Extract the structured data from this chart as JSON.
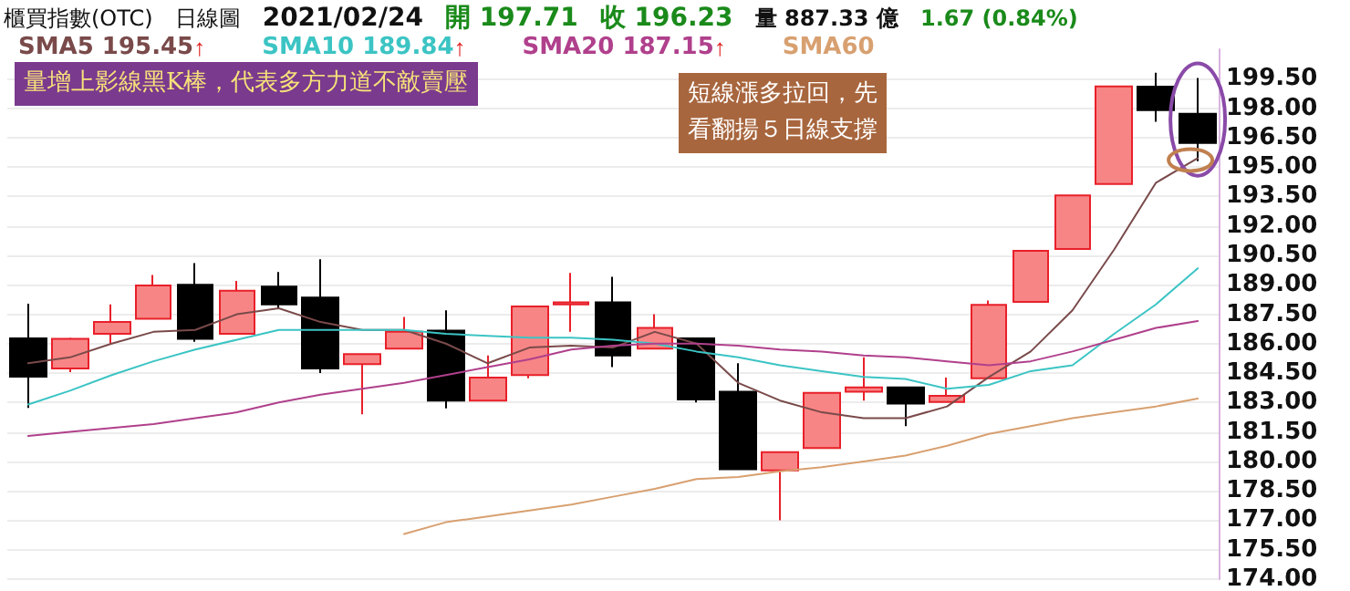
{
  "chart_data": {
    "type": "candlestick",
    "title": "櫃買指數(OTC)",
    "annotations": [
      "日線圖",
      "2021/02/24",
      "開 197.71",
      "收 196.23",
      "量 887.33 億",
      "1.67 (0.84%)",
      "量增上影線黑K棒，代表多方力道不敵賣壓",
      "短線漲多拉回，先看翻揚５日線支撐"
    ],
    "categories": [
      null,
      null,
      null,
      null,
      null,
      null,
      null,
      null,
      null,
      null,
      null,
      null,
      null,
      null,
      null,
      null,
      null,
      null,
      null,
      null,
      null,
      null,
      null,
      null,
      null,
      null,
      null,
      null,
      null
    ],
    "ohlc": [
      [
        186.27,
        188.04,
        182.72,
        184.32
      ],
      [
        184.73,
        186.3,
        184.55,
        186.25
      ],
      [
        186.5,
        188.0,
        186.0,
        187.1
      ],
      [
        187.27,
        189.5,
        187.27,
        188.96
      ],
      [
        189.0,
        190.1,
        186.1,
        186.25
      ],
      [
        186.5,
        189.2,
        186.5,
        188.7
      ],
      [
        188.9,
        189.65,
        187.8,
        188.0
      ],
      [
        188.35,
        190.3,
        184.5,
        184.73
      ],
      [
        184.95,
        185.5,
        182.4,
        185.47
      ],
      [
        185.74,
        187.36,
        185.74,
        186.6
      ],
      [
        186.66,
        187.7,
        182.7,
        183.1
      ],
      [
        183.1,
        185.4,
        183.1,
        184.27
      ],
      [
        184.4,
        187.9,
        184.23,
        187.9
      ],
      [
        188.0,
        189.6,
        186.6,
        188.1
      ],
      [
        188.1,
        189.4,
        184.8,
        185.4
      ],
      [
        185.74,
        187.5,
        185.74,
        186.8
      ],
      [
        186.27,
        186.27,
        183.0,
        183.16
      ],
      [
        183.55,
        185.0,
        179.6,
        179.6
      ],
      [
        179.54,
        180.47,
        177.0,
        180.47
      ],
      [
        180.68,
        183.5,
        180.68,
        183.49
      ],
      [
        183.55,
        185.3,
        183.1,
        183.77
      ],
      [
        183.77,
        183.8,
        181.8,
        182.94
      ],
      [
        183.03,
        184.27,
        183.03,
        183.34
      ],
      [
        184.23,
        188.2,
        184.23,
        187.98
      ],
      [
        188.13,
        190.73,
        188.13,
        190.73
      ],
      [
        190.82,
        193.6,
        190.82,
        193.55
      ],
      [
        194.13,
        199.11,
        194.13,
        199.11
      ],
      [
        199.1,
        199.8,
        197.3,
        197.9
      ],
      [
        197.71,
        199.54,
        195.3,
        196.23
      ]
    ],
    "series": [
      {
        "name": "SMA5 195.45↑",
        "type": "line",
        "color": "#7a4a4a",
        "values": [
          185.0,
          185.3,
          186.0,
          186.6,
          186.7,
          187.5,
          187.8,
          187.1,
          186.7,
          186.7,
          186.0,
          185.0,
          185.8,
          185.9,
          185.8,
          186.6,
          186.0,
          184.0,
          183.1,
          182.5,
          182.2,
          182.2,
          182.8,
          184.3,
          185.6,
          187.7,
          190.8,
          194.2,
          195.45
        ]
      },
      {
        "name": "SMA10 189.84↑",
        "type": "line",
        "color": "#3cc4c4",
        "values": [
          182.9,
          183.6,
          184.4,
          185.1,
          185.7,
          186.2,
          186.7,
          186.7,
          186.7,
          186.7,
          186.5,
          186.4,
          186.3,
          186.3,
          186.2,
          186.0,
          185.6,
          185.3,
          184.9,
          184.6,
          184.3,
          184.2,
          183.7,
          183.9,
          184.6,
          184.9,
          186.5,
          188.0,
          189.84
        ]
      },
      {
        "name": "SMA20 187.15↑",
        "type": "line",
        "color": "#b0408c",
        "values": [
          181.3,
          181.5,
          181.7,
          181.9,
          182.2,
          182.5,
          183.0,
          183.4,
          183.7,
          184.0,
          184.4,
          184.8,
          185.2,
          185.7,
          185.9,
          186.0,
          186.0,
          185.9,
          185.7,
          185.6,
          185.4,
          185.3,
          185.1,
          184.9,
          185.1,
          185.6,
          186.2,
          186.8,
          187.15
        ]
      },
      {
        "name": "SMA60",
        "type": "line",
        "color": "#d8a070",
        "values": [
          null,
          null,
          null,
          null,
          null,
          null,
          null,
          null,
          null,
          176.3,
          176.9,
          177.2,
          177.5,
          177.8,
          178.2,
          178.6,
          179.1,
          179.2,
          179.5,
          179.7,
          180.0,
          180.3,
          180.8,
          181.4,
          181.8,
          182.2,
          182.5,
          182.8,
          183.2
        ]
      }
    ],
    "ylim": [
      174,
      201
    ],
    "yticks": [
      {
        "value": 174,
        "label": "174.00"
      },
      {
        "value": 175.5,
        "label": "175.50"
      },
      {
        "value": 177,
        "label": "177.00"
      },
      {
        "value": 178.5,
        "label": "178.50"
      },
      {
        "value": 180,
        "label": "180.00"
      },
      {
        "value": 181.5,
        "label": "181.50"
      },
      {
        "value": 183,
        "label": "183.00"
      },
      {
        "value": 184.5,
        "label": "184.50"
      },
      {
        "value": 186,
        "label": "186.00"
      },
      {
        "value": 187.5,
        "label": "187.50"
      },
      {
        "value": 189,
        "label": "189.00"
      },
      {
        "value": 190.5,
        "label": "190.50"
      },
      {
        "value": 192,
        "label": "192.00"
      },
      {
        "value": 193.5,
        "label": "193.50"
      },
      {
        "value": 195,
        "label": "195.00"
      },
      {
        "value": 196.5,
        "label": "196.50"
      },
      {
        "value": 198,
        "label": "198.00"
      },
      {
        "value": 199.5,
        "label": "199.50"
      }
    ],
    "grid": "y",
    "legend": "top left",
    "tick_labels": "y",
    "marker": "none",
    "line_style": "solid"
  }
}
